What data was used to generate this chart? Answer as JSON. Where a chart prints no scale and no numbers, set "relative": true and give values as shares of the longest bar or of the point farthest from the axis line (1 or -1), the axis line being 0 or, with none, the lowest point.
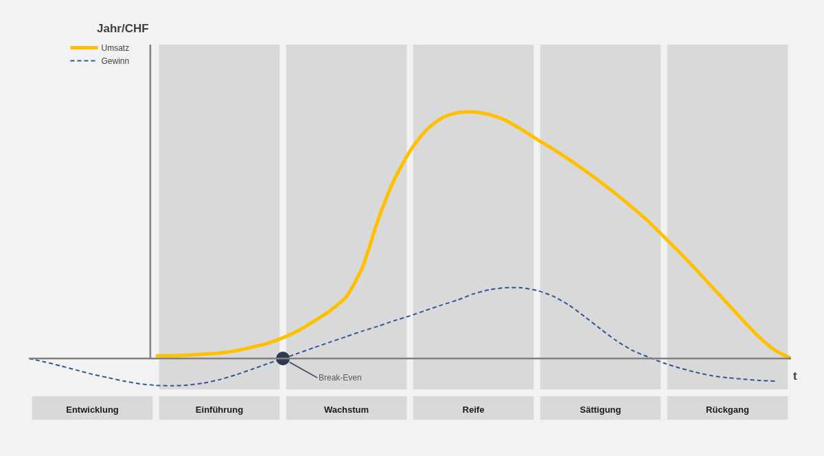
{
  "chart_data": {
    "type": "line",
    "relative": true,
    "categories": [
      null,
      null,
      null,
      null,
      "Entwicklung",
      null,
      null,
      null,
      null,
      null,
      null,
      null,
      "Einführung",
      null,
      null,
      null,
      null,
      null,
      null,
      null,
      "Wachstum",
      null,
      null,
      null,
      null,
      null,
      null,
      null,
      "Reife",
      null,
      null,
      null,
      null,
      null,
      null,
      null,
      "Sättigung",
      null,
      null,
      null,
      null,
      null,
      null,
      null,
      "Rückgang",
      null,
      null,
      null,
      null
    ],
    "series": [
      {
        "name": "Umsatz",
        "color": "#ffc000",
        "line_style": "solid",
        "values": [
          null,
          null,
          null,
          null,
          null,
          null,
          null,
          null,
          0.011,
          0.011,
          0.014,
          0.017,
          0.022,
          0.031,
          0.045,
          0.061,
          0.084,
          0.114,
          0.153,
          0.195,
          0.251,
          0.368,
          0.563,
          0.724,
          0.841,
          0.925,
          0.975,
          0.997,
          1,
          0.989,
          0.967,
          0.93,
          0.889,
          0.85,
          0.808,
          0.763,
          0.716,
          0.666,
          0.613,
          0.557,
          0.493,
          0.429,
          0.362,
          0.292,
          0.223,
          0.153,
          0.086,
          0.033,
          0
        ]
      },
      {
        "name": "Gewinn",
        "color": "#2f5597",
        "line_style": "dashed",
        "values": [
          0,
          -0.014,
          -0.03,
          -0.047,
          -0.064,
          -0.078,
          -0.092,
          -0.103,
          -0.109,
          -0.111,
          -0.108,
          -0.1,
          -0.086,
          -0.067,
          -0.045,
          -0.022,
          0,
          0.022,
          0.045,
          0.067,
          0.089,
          0.111,
          0.131,
          0.153,
          0.173,
          0.195,
          0.217,
          0.237,
          0.262,
          0.279,
          0.287,
          0.287,
          0.276,
          0.253,
          0.217,
          0.17,
          0.12,
          0.072,
          0.033,
          0.006,
          -0.019,
          -0.039,
          -0.056,
          -0.07,
          -0.078,
          -0.084,
          -0.089,
          -0.092,
          null
        ]
      },
      {
        "type": "scatter",
        "color": "#2e3a50",
        "marker": "circle",
        "values": [
          null,
          null,
          null,
          null,
          null,
          null,
          null,
          null,
          null,
          null,
          null,
          null,
          null,
          null,
          null,
          null,
          0,
          null,
          null,
          null,
          null,
          null,
          null,
          null,
          null,
          null,
          null,
          null,
          null,
          null,
          null,
          null,
          null,
          null,
          null,
          null,
          null,
          null,
          null,
          null,
          null,
          null,
          null,
          null,
          null,
          null,
          null,
          null,
          null
        ]
      }
    ],
    "annotations": [
      "Jahr/CHF",
      "t",
      "Break-Even"
    ],
    "legend": "top left",
    "grid": false
  }
}
